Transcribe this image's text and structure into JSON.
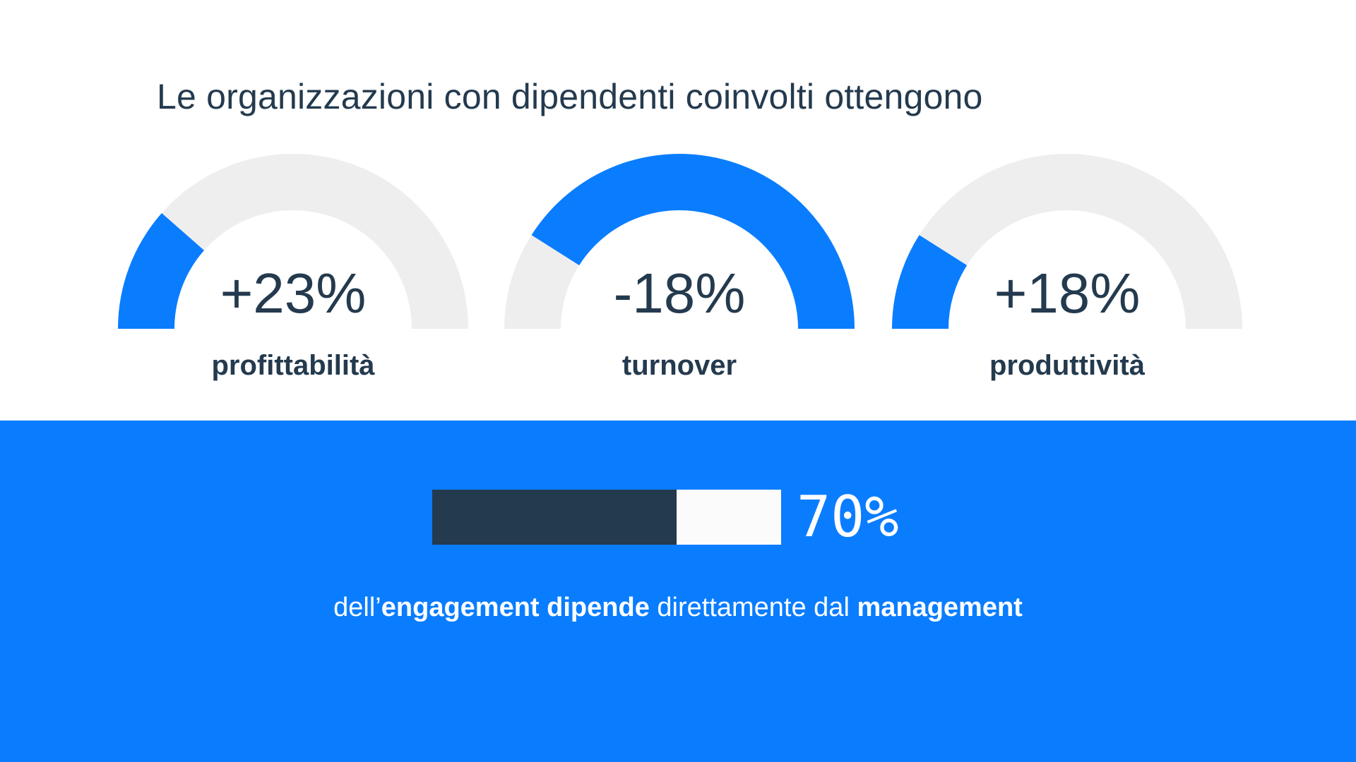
{
  "title": "Le organizzazioni con dipendenti coinvolti ottengono",
  "colors": {
    "accent": "#0a7dff",
    "track": "#efeeef",
    "dark": "#243a4e",
    "bar_empty": "#fbfbfb",
    "white": "#ffffff"
  },
  "chart_data": [
    {
      "type": "gauge",
      "series": [
        {
          "value_label": "+23%",
          "label": "profittabilità",
          "fill_fraction": 0.23,
          "fill_from": "left"
        },
        {
          "value_label": "-18%",
          "label": "turnover",
          "fill_fraction": 0.82,
          "fill_from": "right"
        },
        {
          "value_label": "+18%",
          "label": "produttività",
          "fill_fraction": 0.18,
          "fill_from": "left"
        }
      ]
    },
    {
      "type": "bar",
      "value": 70,
      "value_label": "70%",
      "max": 100
    }
  ],
  "caption": {
    "parts": [
      {
        "text": "dell’",
        "bold": false
      },
      {
        "text": "engagement dipende",
        "bold": true
      },
      {
        "text": " direttamente dal ",
        "bold": false
      },
      {
        "text": "management",
        "bold": true
      }
    ]
  }
}
